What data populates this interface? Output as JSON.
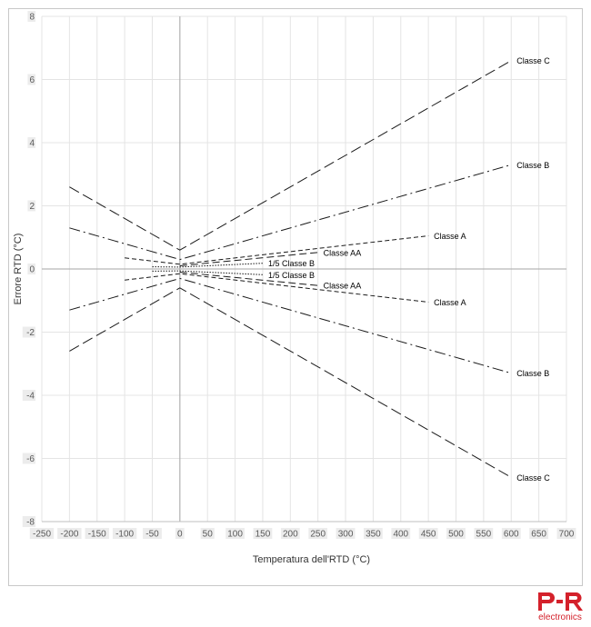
{
  "chart_data": {
    "type": "line",
    "title": "",
    "xlabel": "Temperatura dell'RTD (°C)",
    "ylabel": "Errore RTD (°C)",
    "xlim": [
      -250,
      700
    ],
    "ylim": [
      -8,
      8
    ],
    "x_ticks": [
      "-250",
      "-200",
      "-150",
      "-100",
      "-50",
      "0",
      "50",
      "100",
      "150",
      "200",
      "250",
      "300",
      "350",
      "400",
      "450",
      "500",
      "550",
      "600",
      "650",
      "700"
    ],
    "y_ticks": [
      "8",
      "6",
      "4",
      "2",
      "0",
      "-2",
      "-4",
      "-6",
      "-8"
    ],
    "grid": true,
    "legend": "none",
    "series": [
      {
        "name": "Classe C",
        "dash": "long-dash",
        "points": [
          [
            -200,
            2.6
          ],
          [
            0,
            0.6
          ],
          [
            600,
            6.6
          ]
        ]
      },
      {
        "name": "Classe C",
        "dash": "long-dash",
        "points": [
          [
            -200,
            -2.6
          ],
          [
            0,
            -0.6
          ],
          [
            600,
            -6.6
          ]
        ]
      },
      {
        "name": "Classe B",
        "dash": "dash-dot",
        "points": [
          [
            -200,
            1.3
          ],
          [
            0,
            0.3
          ],
          [
            600,
            3.3
          ]
        ]
      },
      {
        "name": "Classe B",
        "dash": "dash-dot",
        "points": [
          [
            -200,
            -1.3
          ],
          [
            0,
            -0.3
          ],
          [
            600,
            -3.3
          ]
        ]
      },
      {
        "name": "Classe A",
        "dash": "short-dash",
        "points": [
          [
            -100,
            0.35
          ],
          [
            0,
            0.15
          ],
          [
            450,
            1.05
          ]
        ]
      },
      {
        "name": "Classe A",
        "dash": "short-dash",
        "points": [
          [
            -100,
            -0.35
          ],
          [
            0,
            -0.15
          ],
          [
            450,
            -1.05
          ]
        ]
      },
      {
        "name": "Classe AA",
        "dash": "medium-dash",
        "points": [
          [
            0,
            0.1
          ],
          [
            250,
            0.525
          ]
        ]
      },
      {
        "name": "Classe AA",
        "dash": "medium-dash",
        "points": [
          [
            0,
            -0.1
          ],
          [
            250,
            -0.525
          ]
        ]
      },
      {
        "name": "1/5 Classe B",
        "dash": "dotted",
        "points": [
          [
            -50,
            0.07
          ],
          [
            0,
            0.06
          ],
          [
            150,
            0.18
          ]
        ]
      },
      {
        "name": "1/5 Classe B",
        "dash": "dotted",
        "points": [
          [
            -50,
            -0.07
          ],
          [
            0,
            -0.06
          ],
          [
            150,
            -0.18
          ]
        ]
      }
    ]
  },
  "logo": {
    "text": "electronics",
    "mark": "PR",
    "color": "#d4212b"
  }
}
